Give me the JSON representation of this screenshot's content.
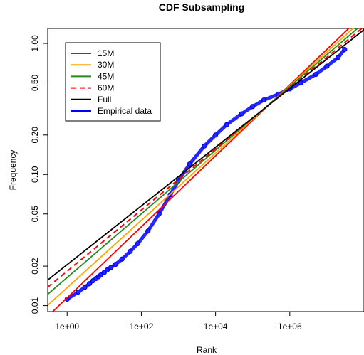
{
  "chart_data": {
    "type": "line",
    "title": "CDF Subsampling",
    "xlabel": "Rank",
    "ylabel": "Frequency",
    "x_scale": "log",
    "y_scale": "log",
    "xlim": [
      0.3,
      100000000
    ],
    "ylim": [
      0.009,
      1.3
    ],
    "x_ticks": [
      1,
      100,
      10000,
      1000000
    ],
    "x_tick_labels": [
      "1e+00",
      "1e+02",
      "1e+04",
      "1e+06"
    ],
    "y_ticks": [
      0.01,
      0.02,
      0.05,
      0.1,
      0.2,
      0.5,
      1.0
    ],
    "y_tick_labels": [
      "0.01",
      "0.02",
      "0.05",
      "0.10",
      "0.20",
      "0.50",
      "1.00"
    ],
    "grid": false,
    "legend_position": "top-left",
    "series": [
      {
        "name": "15M",
        "kind": "line",
        "color": "#ff0000",
        "dash": "solid",
        "x": [
          0.3,
          100000000
        ],
        "y": [
          0.00828,
          1.68
        ]
      },
      {
        "name": "30M",
        "kind": "line",
        "color": "#ffa500",
        "dash": "solid",
        "x": [
          0.3,
          100000000
        ],
        "y": [
          0.01006,
          1.55
        ]
      },
      {
        "name": "45M",
        "kind": "line",
        "color": "#228b22",
        "dash": "solid",
        "x": [
          0.3,
          100000000
        ],
        "y": [
          0.01222,
          1.435
        ]
      },
      {
        "name": "60M",
        "kind": "line",
        "color": "#ff0000",
        "dash": "dashed",
        "x": [
          0.3,
          100000000
        ],
        "y": [
          0.01383,
          1.343
        ]
      },
      {
        "name": "Full",
        "kind": "line",
        "color": "#000000",
        "dash": "solid",
        "x": [
          0.3,
          100000000
        ],
        "y": [
          0.01567,
          1.272
        ]
      },
      {
        "name": "Empirical data",
        "kind": "points",
        "color": "#0000ff",
        "x": [
          1,
          2,
          3,
          4,
          5,
          6,
          7,
          8,
          10,
          12,
          15,
          20,
          30,
          50,
          80,
          150,
          300,
          600,
          1000,
          2000,
          5000,
          10000,
          20000,
          50000,
          100000,
          200000,
          500000,
          1000000,
          2000000,
          5000000,
          10000000,
          20000000,
          30000000
        ],
        "y": [
          0.0112,
          0.0127,
          0.0138,
          0.0147,
          0.0155,
          0.0161,
          0.0166,
          0.0171,
          0.0179,
          0.0187,
          0.0195,
          0.0206,
          0.0226,
          0.0259,
          0.0297,
          0.037,
          0.05,
          0.07,
          0.09,
          0.12,
          0.165,
          0.2,
          0.24,
          0.29,
          0.33,
          0.37,
          0.41,
          0.45,
          0.5,
          0.58,
          0.67,
          0.78,
          0.9
        ]
      }
    ]
  }
}
